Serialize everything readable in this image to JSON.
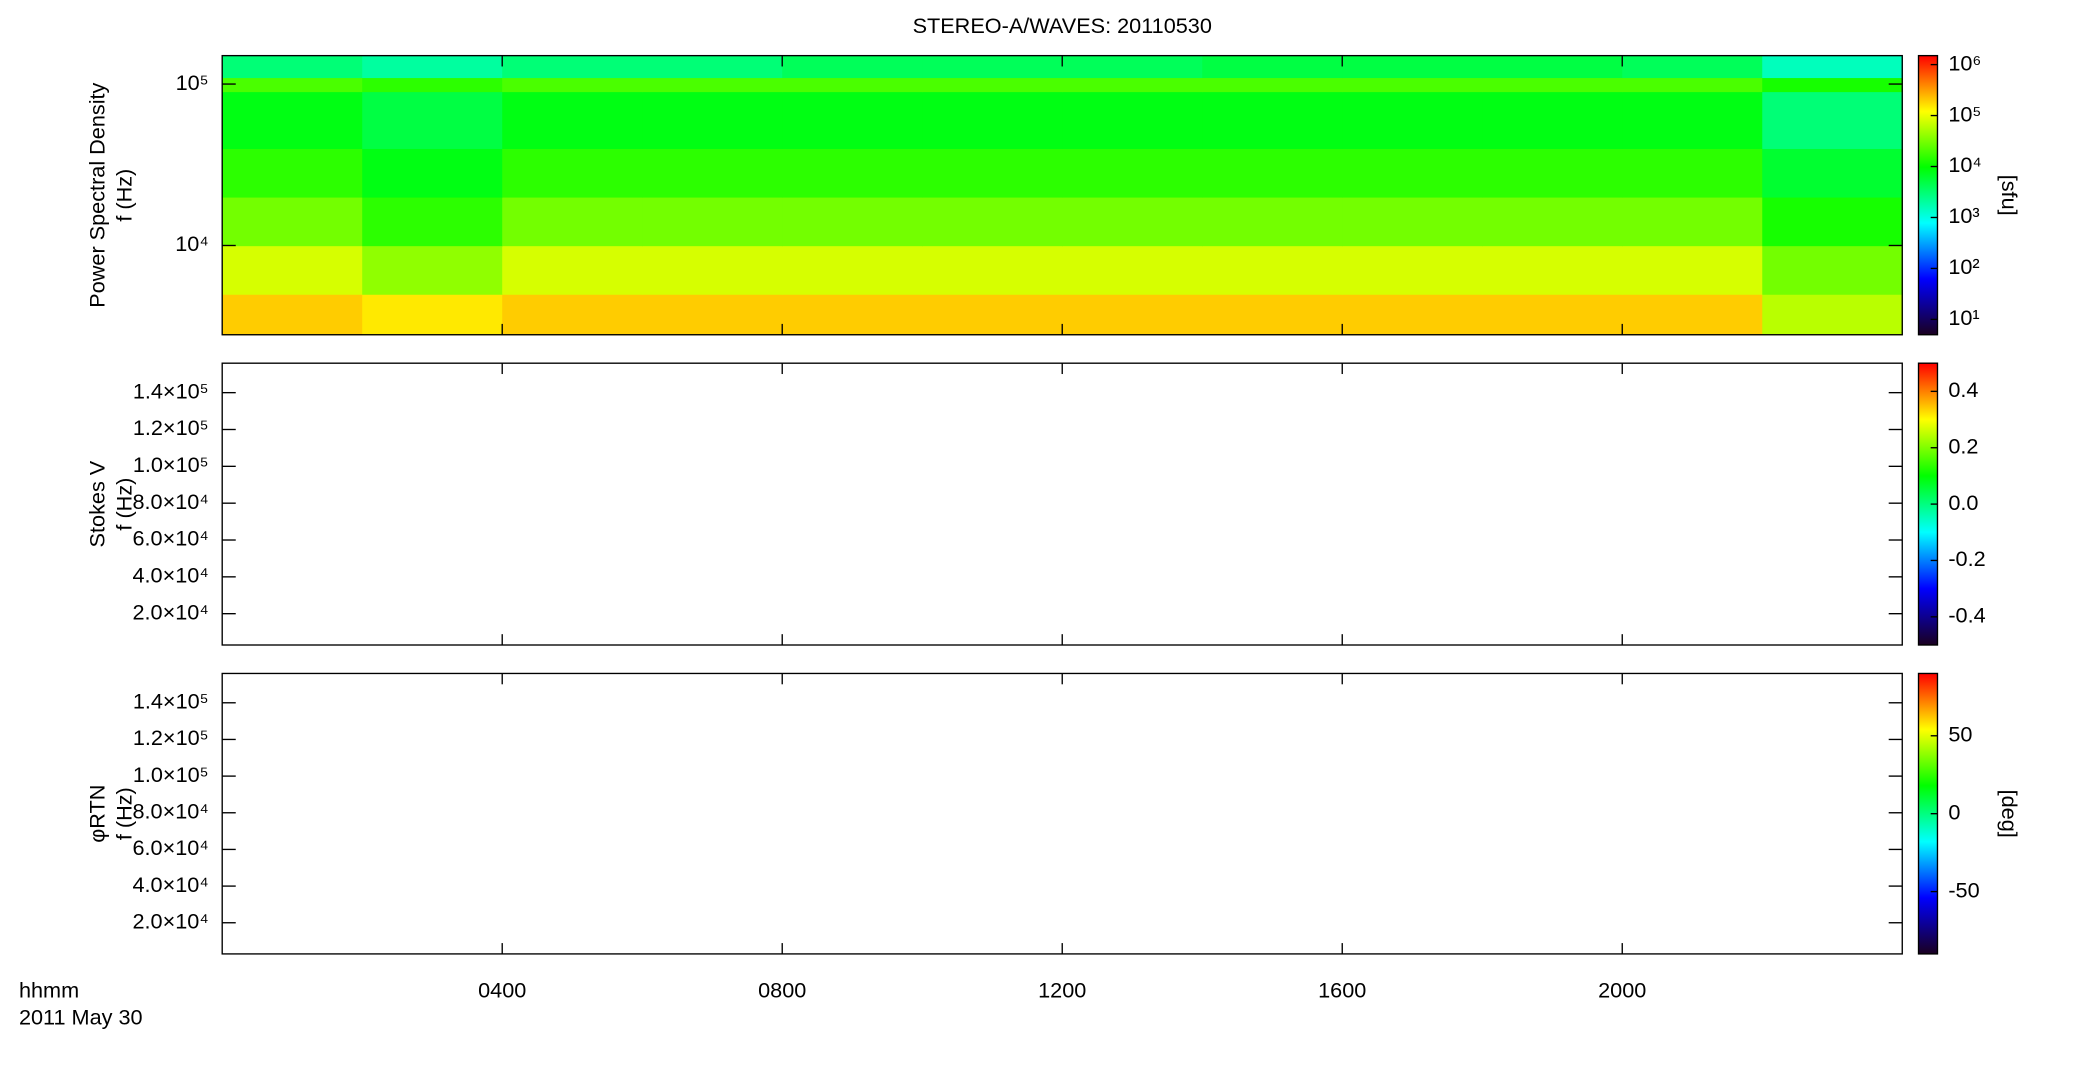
{
  "chart_data": [
    {
      "type": "heatmap",
      "title": "STEREO-A/WAVES: 20110530",
      "ylabel": [
        "Power Spectral Density",
        "f (Hz)"
      ],
      "ylog": true,
      "ylim": [
        2800,
        150000
      ],
      "yticks": [
        {
          "value": 10000,
          "label": "10⁴"
        },
        {
          "value": 100000,
          "label": "10⁵"
        }
      ],
      "xlim": [
        0,
        24
      ],
      "x_edges": [
        0,
        2,
        4,
        6,
        8,
        10,
        12,
        14,
        16,
        18,
        20,
        22,
        24
      ],
      "y_edges": [
        2800,
        5000,
        10000,
        20000,
        40000,
        90000,
        110000,
        150000
      ],
      "z": [
        [
          200000,
          150000,
          200000,
          200000,
          200000,
          200000,
          200000,
          200000,
          200000,
          200000,
          200000,
          60000
        ],
        [
          80000,
          40000,
          80000,
          80000,
          80000,
          80000,
          80000,
          80000,
          80000,
          80000,
          80000,
          30000
        ],
        [
          30000,
          15000,
          30000,
          30000,
          30000,
          30000,
          30000,
          30000,
          30000,
          30000,
          30000,
          12000
        ],
        [
          15000,
          8000,
          15000,
          15000,
          15000,
          15000,
          15000,
          15000,
          15000,
          15000,
          15000,
          6000
        ],
        [
          8000,
          5000,
          8000,
          8000,
          8000,
          8000,
          8000,
          8000,
          8000,
          8000,
          8000,
          3000
        ],
        [
          20000,
          15000,
          20000,
          20000,
          20000,
          20000,
          20000,
          20000,
          20000,
          20000,
          20000,
          12000
        ],
        [
          3000,
          2000,
          3000,
          3000,
          4000,
          4000,
          4000,
          5000,
          5000,
          5000,
          4000,
          1500
        ]
      ],
      "clim": [
        5,
        1500000
      ],
      "clog": true,
      "clabel": "[sfu]",
      "cticks": [
        {
          "value": 10,
          "label": "10¹"
        },
        {
          "value": 100,
          "label": "10²"
        },
        {
          "value": 1000,
          "label": "10³"
        },
        {
          "value": 10000,
          "label": "10⁴"
        },
        {
          "value": 100000,
          "label": "10⁵"
        },
        {
          "value": 1000000,
          "label": "10⁶"
        }
      ],
      "colormap": [
        "#1a0020",
        "#0000ff",
        "#00ffff",
        "#00ff00",
        "#ffff00",
        "#ff0000"
      ]
    },
    {
      "type": "heatmap",
      "ylabel": [
        "Stokes V",
        "f (Hz)"
      ],
      "ylog": false,
      "ylim": [
        3000,
        156000
      ],
      "yticks": [
        {
          "value": 20000,
          "label": "2.0×10⁴"
        },
        {
          "value": 40000,
          "label": "4.0×10⁴"
        },
        {
          "value": 60000,
          "label": "6.0×10⁴"
        },
        {
          "value": 80000,
          "label": "8.0×10⁴"
        },
        {
          "value": 100000,
          "label": "1.0×10⁵"
        },
        {
          "value": 120000,
          "label": "1.2×10⁵"
        },
        {
          "value": 140000,
          "label": "1.4×10⁵"
        }
      ],
      "xlim": [
        0,
        24
      ],
      "clim": [
        -0.5,
        0.5
      ],
      "clog": false,
      "cticks": [
        -0.4,
        -0.2,
        {
          "value": 0,
          "label": "0.0"
        },
        0.2,
        0.4
      ],
      "colormap": [
        "#1a0020",
        "#0000ff",
        "#00ffff",
        "#00ff00",
        "#ffff00",
        "#ff0000"
      ]
    },
    {
      "type": "heatmap",
      "ylabel": [
        "φRTN",
        "f (Hz)"
      ],
      "ylog": false,
      "ylim": [
        3000,
        156000
      ],
      "yticks": [
        {
          "value": 20000,
          "label": "2.0×10⁴"
        },
        {
          "value": 40000,
          "label": "4.0×10⁴"
        },
        {
          "value": 60000,
          "label": "6.0×10⁴"
        },
        {
          "value": 80000,
          "label": "8.0×10⁴"
        },
        {
          "value": 100000,
          "label": "1.0×10⁵"
        },
        {
          "value": 120000,
          "label": "1.2×10⁵"
        },
        {
          "value": 140000,
          "label": "1.4×10⁵"
        }
      ],
      "xlim": [
        0,
        24
      ],
      "xticks": [
        {
          "value": 4,
          "label": "0400"
        },
        {
          "value": 8,
          "label": "0800"
        },
        {
          "value": 12,
          "label": "1200"
        },
        {
          "value": 16,
          "label": "1600"
        },
        {
          "value": 20,
          "label": "2000"
        }
      ],
      "xlabel": [
        "hhmm",
        "2011 May 30"
      ],
      "clim": [
        -90,
        90
      ],
      "clog": false,
      "clabel": "[deg]",
      "cticks": [
        -50,
        0,
        50
      ],
      "colormap": [
        "#1a0020",
        "#0000ff",
        "#00ffff",
        "#00ff00",
        "#ffff00",
        "#ff0000"
      ]
    }
  ]
}
